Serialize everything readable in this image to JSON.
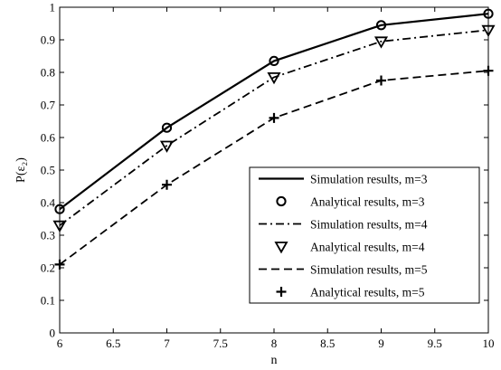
{
  "chart_data": {
    "type": "line",
    "title": "",
    "xlabel": "n",
    "ylabel": "P(ε₂)",
    "xlim": [
      6,
      10
    ],
    "ylim": [
      0,
      1
    ],
    "xticks": [
      "6",
      "6.5",
      "7",
      "7.5",
      "8",
      "8.5",
      "9",
      "9.5",
      "10"
    ],
    "yticks": [
      "0",
      "0.1",
      "0.2",
      "0.3",
      "0.4",
      "0.5",
      "0.6",
      "0.7",
      "0.8",
      "0.9",
      "1"
    ],
    "grid": false,
    "legend_position": "bottom-right",
    "x": [
      6,
      7,
      8,
      9,
      10
    ],
    "series": [
      {
        "name": "Simulation results, m=3",
        "style": "solid",
        "marker": "none",
        "values": [
          0.38,
          0.63,
          0.835,
          0.945,
          0.98
        ]
      },
      {
        "name": "Analytical results, m=3",
        "style": "none",
        "marker": "circle",
        "values": [
          0.38,
          0.63,
          0.835,
          0.945,
          0.98
        ]
      },
      {
        "name": "Simulation results, m=4",
        "style": "dashdot",
        "marker": "none",
        "values": [
          0.33,
          0.575,
          0.785,
          0.895,
          0.93
        ]
      },
      {
        "name": "Analytical results, m=4",
        "style": "none",
        "marker": "triangle-down",
        "values": [
          0.33,
          0.575,
          0.785,
          0.895,
          0.93
        ]
      },
      {
        "name": "Simulation results, m=5",
        "style": "dashed",
        "marker": "none",
        "values": [
          0.21,
          0.455,
          0.66,
          0.775,
          0.805
        ]
      },
      {
        "name": "Analytical results, m=5",
        "style": "none",
        "marker": "plus",
        "values": [
          0.21,
          0.455,
          0.66,
          0.775,
          0.805
        ]
      }
    ]
  }
}
